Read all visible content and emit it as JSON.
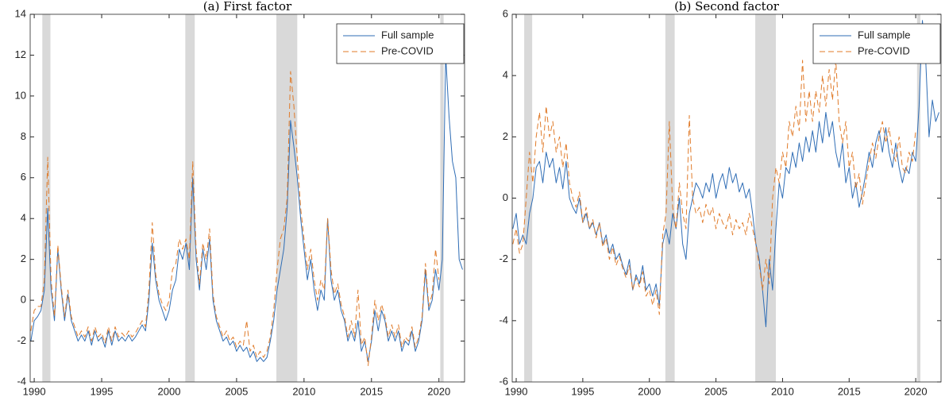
{
  "chart_data": [
    {
      "type": "line",
      "title": "(a) First factor",
      "x": [
        1989.75,
        1990,
        1990.25,
        1990.5,
        1990.75,
        1991,
        1991.25,
        1991.5,
        1991.75,
        1992,
        1992.25,
        1992.5,
        1992.75,
        1993,
        1993.25,
        1993.5,
        1993.75,
        1994,
        1994.25,
        1994.5,
        1994.75,
        1995,
        1995.25,
        1995.5,
        1995.75,
        1996,
        1996.25,
        1996.5,
        1996.75,
        1997,
        1997.25,
        1997.5,
        1997.75,
        1998,
        1998.25,
        1998.5,
        1998.75,
        1999,
        1999.25,
        1999.5,
        1999.75,
        2000,
        2000.25,
        2000.5,
        2000.75,
        2001,
        2001.25,
        2001.5,
        2001.75,
        2002,
        2002.25,
        2002.5,
        2002.75,
        2003,
        2003.25,
        2003.5,
        2003.75,
        2004,
        2004.25,
        2004.5,
        2004.75,
        2005,
        2005.25,
        2005.5,
        2005.75,
        2006,
        2006.25,
        2006.5,
        2006.75,
        2007,
        2007.25,
        2007.5,
        2007.75,
        2008,
        2008.25,
        2008.5,
        2008.75,
        2009,
        2009.25,
        2009.5,
        2009.75,
        2010,
        2010.25,
        2010.5,
        2010.75,
        2011,
        2011.25,
        2011.5,
        2011.75,
        2012,
        2012.25,
        2012.5,
        2012.75,
        2013,
        2013.25,
        2013.5,
        2013.75,
        2014,
        2014.25,
        2014.5,
        2014.75,
        2015,
        2015.25,
        2015.5,
        2015.75,
        2016,
        2016.25,
        2016.5,
        2016.75,
        2017,
        2017.25,
        2017.5,
        2017.75,
        2018,
        2018.25,
        2018.5,
        2018.75,
        2019,
        2019.25,
        2019.5,
        2019.75,
        2020,
        2020.25,
        2020.5,
        2020.75,
        2021,
        2021.25,
        2021.5,
        2021.75
      ],
      "series": [
        {
          "name": "Full sample",
          "color": "#2f6db5",
          "line_style": "solid",
          "values": [
            -2.0,
            -1.0,
            -0.8,
            -0.5,
            0.5,
            4.5,
            0.5,
            -1.0,
            2.5,
            0.5,
            -1.0,
            0.3,
            -1.0,
            -1.5,
            -2.0,
            -1.7,
            -2.0,
            -1.5,
            -2.2,
            -1.5,
            -2.0,
            -1.8,
            -2.3,
            -1.5,
            -2.2,
            -1.5,
            -2.0,
            -1.8,
            -2.0,
            -1.7,
            -2.0,
            -1.8,
            -1.5,
            -1.2,
            -1.5,
            0.0,
            2.8,
            1.0,
            0.0,
            -0.5,
            -1.0,
            -0.5,
            0.5,
            1.0,
            2.5,
            2.0,
            2.8,
            1.5,
            6.0,
            2.0,
            0.5,
            2.5,
            1.5,
            3.0,
            0.0,
            -1.0,
            -1.5,
            -2.0,
            -1.8,
            -2.2,
            -2.0,
            -2.5,
            -2.2,
            -2.5,
            -2.3,
            -2.8,
            -2.5,
            -3.0,
            -2.8,
            -3.0,
            -2.8,
            -2.0,
            -1.0,
            0.5,
            1.5,
            2.5,
            4.5,
            8.8,
            7.5,
            6.0,
            4.0,
            2.5,
            1.0,
            2.0,
            0.5,
            -0.5,
            0.5,
            0.0,
            4.0,
            1.0,
            0.0,
            0.5,
            -0.5,
            -1.0,
            -2.0,
            -1.5,
            -2.0,
            -1.0,
            -2.5,
            -2.0,
            -3.0,
            -2.0,
            -0.5,
            -1.5,
            -0.5,
            -1.0,
            -2.0,
            -1.5,
            -2.0,
            -1.5,
            -2.5,
            -2.0,
            -2.2,
            -1.5,
            -2.5,
            -2.0,
            -1.0,
            1.5,
            -0.5,
            0.0,
            1.5,
            0.5,
            2.0,
            12.0,
            9.0,
            6.8,
            6.0,
            2.0,
            1.5
          ]
        },
        {
          "name": "Pre-COVID",
          "color": "#e07b2a",
          "line_style": "dashed",
          "values": [
            -1.5,
            -0.5,
            -0.3,
            -0.3,
            1.0,
            7.0,
            1.0,
            -0.8,
            2.7,
            0.7,
            -0.8,
            0.5,
            -0.8,
            -1.3,
            -1.8,
            -1.5,
            -1.8,
            -1.3,
            -2.0,
            -1.3,
            -1.8,
            -1.6,
            -2.1,
            -1.3,
            -2.0,
            -1.3,
            -1.8,
            -1.6,
            -1.8,
            -1.5,
            -1.8,
            -1.6,
            -1.3,
            -1.0,
            -1.3,
            0.5,
            3.8,
            1.3,
            0.3,
            -0.2,
            -0.5,
            0.0,
            1.5,
            1.8,
            3.0,
            2.5,
            3.0,
            2.0,
            6.8,
            2.5,
            0.8,
            2.8,
            2.0,
            3.5,
            0.3,
            -0.8,
            -1.3,
            -1.8,
            -1.5,
            -2.0,
            -1.8,
            -2.3,
            -2.0,
            -2.2,
            -1.0,
            -2.5,
            -2.2,
            -2.8,
            -2.5,
            -2.8,
            -2.5,
            -1.8,
            -0.5,
            1.5,
            3.0,
            3.5,
            5.0,
            11.2,
            9.5,
            7.0,
            4.5,
            3.0,
            1.5,
            2.5,
            1.0,
            0.0,
            1.0,
            0.5,
            4.0,
            1.5,
            0.3,
            0.8,
            -0.2,
            -0.8,
            -1.8,
            -1.0,
            -1.8,
            0.5,
            -2.2,
            -1.8,
            -3.2,
            -1.8,
            0.0,
            -1.0,
            -0.2,
            -0.8,
            -1.8,
            -1.2,
            -1.8,
            -1.2,
            -2.3,
            -1.8,
            -2.0,
            -1.3,
            -2.3,
            -1.8,
            -0.8,
            1.8,
            -0.3,
            0.3,
            2.5,
            1.0,
            null,
            null,
            null,
            null,
            null,
            null,
            null
          ]
        }
      ],
      "shaded_regions": [
        [
          1990.6,
          1991.2
        ],
        [
          2001.2,
          2001.9
        ],
        [
          2007.95,
          2009.5
        ],
        [
          2020.1,
          2020.35
        ]
      ],
      "shade_color": "#d9d9d9",
      "xlim": [
        1989.7,
        2021.9
      ],
      "xticks": [
        1990,
        1995,
        2000,
        2005,
        2010,
        2015,
        2020
      ],
      "ylim": [
        -4,
        14
      ],
      "yticks": [
        -4,
        -2,
        0,
        2,
        4,
        6,
        8,
        10,
        12,
        14
      ],
      "legend": "upper right"
    },
    {
      "type": "line",
      "title": "(b) Second factor",
      "x": [
        1989.75,
        1990,
        1990.25,
        1990.5,
        1990.75,
        1991,
        1991.25,
        1991.5,
        1991.75,
        1992,
        1992.25,
        1992.5,
        1992.75,
        1993,
        1993.25,
        1993.5,
        1993.75,
        1994,
        1994.25,
        1994.5,
        1994.75,
        1995,
        1995.25,
        1995.5,
        1995.75,
        1996,
        1996.25,
        1996.5,
        1996.75,
        1997,
        1997.25,
        1997.5,
        1997.75,
        1998,
        1998.25,
        1998.5,
        1998.75,
        1999,
        1999.25,
        1999.5,
        1999.75,
        2000,
        2000.25,
        2000.5,
        2000.75,
        2001,
        2001.25,
        2001.5,
        2001.75,
        2002,
        2002.25,
        2002.5,
        2002.75,
        2003,
        2003.25,
        2003.5,
        2003.75,
        2004,
        2004.25,
        2004.5,
        2004.75,
        2005,
        2005.25,
        2005.5,
        2005.75,
        2006,
        2006.25,
        2006.5,
        2006.75,
        2007,
        2007.25,
        2007.5,
        2007.75,
        2008,
        2008.25,
        2008.5,
        2008.75,
        2009,
        2009.25,
        2009.5,
        2009.75,
        2010,
        2010.25,
        2010.5,
        2010.75,
        2011,
        2011.25,
        2011.5,
        2011.75,
        2012,
        2012.25,
        2012.5,
        2012.75,
        2013,
        2013.25,
        2013.5,
        2013.75,
        2014,
        2014.25,
        2014.5,
        2014.75,
        2015,
        2015.25,
        2015.5,
        2015.75,
        2016,
        2016.25,
        2016.5,
        2016.75,
        2017,
        2017.25,
        2017.5,
        2017.75,
        2018,
        2018.25,
        2018.5,
        2018.75,
        2019,
        2019.25,
        2019.5,
        2019.75,
        2020,
        2020.25,
        2020.5,
        2020.75,
        2021,
        2021.25,
        2021.5,
        2021.75
      ],
      "series": [
        {
          "name": "Full sample",
          "color": "#2f6db5",
          "line_style": "solid",
          "values": [
            -1.0,
            -0.5,
            -1.5,
            -1.2,
            -1.5,
            -0.5,
            0.0,
            1.0,
            1.2,
            0.5,
            1.5,
            1.0,
            1.3,
            0.5,
            1.0,
            0.3,
            1.2,
            0.0,
            -0.3,
            -0.5,
            0.0,
            -0.8,
            -0.5,
            -1.0,
            -0.8,
            -1.2,
            -0.8,
            -1.5,
            -1.2,
            -1.8,
            -1.5,
            -2.0,
            -1.8,
            -2.2,
            -2.5,
            -2.0,
            -3.0,
            -2.5,
            -2.8,
            -2.2,
            -3.0,
            -2.8,
            -3.2,
            -2.8,
            -3.5,
            -1.5,
            -1.0,
            -1.5,
            -0.5,
            -1.0,
            0.0,
            -1.5,
            -2.0,
            -0.5,
            0.0,
            0.5,
            0.3,
            0.0,
            0.5,
            0.2,
            0.8,
            0.0,
            0.5,
            0.8,
            0.3,
            1.0,
            0.5,
            0.8,
            0.2,
            0.5,
            0.0,
            0.3,
            -0.5,
            -1.5,
            -2.0,
            -3.0,
            -4.2,
            -2.0,
            -3.0,
            -1.0,
            0.5,
            0.0,
            1.0,
            0.8,
            1.5,
            1.0,
            1.8,
            1.2,
            2.0,
            1.5,
            2.2,
            1.5,
            2.5,
            1.8,
            2.8,
            2.0,
            2.5,
            1.5,
            1.0,
            1.8,
            0.5,
            1.0,
            0.0,
            0.5,
            -0.3,
            0.2,
            0.8,
            1.5,
            1.0,
            1.8,
            2.2,
            1.5,
            2.3,
            1.5,
            1.0,
            1.8,
            1.0,
            0.5,
            1.0,
            0.8,
            1.5,
            1.2,
            3.0,
            5.8,
            4.5,
            2.0,
            3.2,
            2.5,
            2.8
          ]
        },
        {
          "name": "Pre-COVID",
          "color": "#e07b2a",
          "line_style": "dashed",
          "values": [
            -1.5,
            -1.0,
            -1.8,
            -1.5,
            0.0,
            1.5,
            0.5,
            2.0,
            2.8,
            1.5,
            3.0,
            2.0,
            2.5,
            1.5,
            2.0,
            1.0,
            1.8,
            0.5,
            0.0,
            -0.3,
            0.2,
            -0.8,
            -0.3,
            -1.0,
            -0.7,
            -1.3,
            -0.8,
            -1.6,
            -1.3,
            -2.0,
            -1.6,
            -2.2,
            -1.9,
            -2.3,
            -2.6,
            -2.2,
            -3.0,
            -2.6,
            -2.9,
            -2.4,
            -3.2,
            -3.0,
            -3.5,
            -3.0,
            -3.8,
            -1.2,
            -0.5,
            2.5,
            -0.3,
            -1.0,
            0.5,
            -0.5,
            -1.0,
            2.7,
            0.0,
            -0.5,
            -0.3,
            -0.8,
            -0.2,
            -0.6,
            -0.3,
            -1.0,
            -0.5,
            -0.8,
            -1.0,
            -0.5,
            -1.2,
            -0.7,
            -1.0,
            -0.8,
            -1.2,
            -0.5,
            -1.0,
            -1.5,
            -2.2,
            -3.0,
            -2.0,
            -2.8,
            0.0,
            1.0,
            0.5,
            1.5,
            1.0,
            2.5,
            2.0,
            3.0,
            2.2,
            4.5,
            2.5,
            3.5,
            2.5,
            3.5,
            2.8,
            4.0,
            3.0,
            4.2,
            3.2,
            4.5,
            2.5,
            1.8,
            2.5,
            1.0,
            1.5,
            0.3,
            0.8,
            -0.2,
            0.5,
            1.2,
            1.8,
            1.3,
            2.0,
            2.5,
            1.8,
            2.3,
            1.5,
            1.2,
            2.0,
            1.0,
            0.8,
            1.5,
            1.2,
            2.2,
            null,
            null,
            null,
            null,
            null,
            null,
            null
          ]
        }
      ],
      "shaded_regions": [
        [
          1990.6,
          1991.2
        ],
        [
          2001.2,
          2001.9
        ],
        [
          2007.95,
          2009.5
        ],
        [
          2020.1,
          2020.35
        ]
      ],
      "shade_color": "#d9d9d9",
      "xlim": [
        1989.7,
        2021.9
      ],
      "xticks": [
        1990,
        1995,
        2000,
        2005,
        2010,
        2015,
        2020
      ],
      "ylim": [
        -6,
        6
      ],
      "yticks": [
        -6,
        -4,
        -2,
        0,
        2,
        4,
        6
      ],
      "legend": "upper right"
    }
  ]
}
